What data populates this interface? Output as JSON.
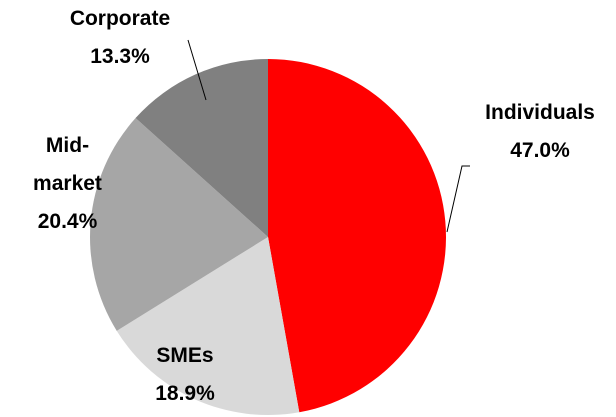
{
  "chart_data": {
    "type": "pie",
    "categories": [
      "Individuals",
      "SMEs",
      "Mid-market",
      "Corporate"
    ],
    "values": [
      47.0,
      18.9,
      20.4,
      13.3
    ],
    "value_labels": [
      "47.0%",
      "18.9%",
      "20.4%",
      "13.3%"
    ],
    "colors": [
      "#ff0000",
      "#d9d9d9",
      "#a6a6a6",
      "#808080"
    ]
  }
}
